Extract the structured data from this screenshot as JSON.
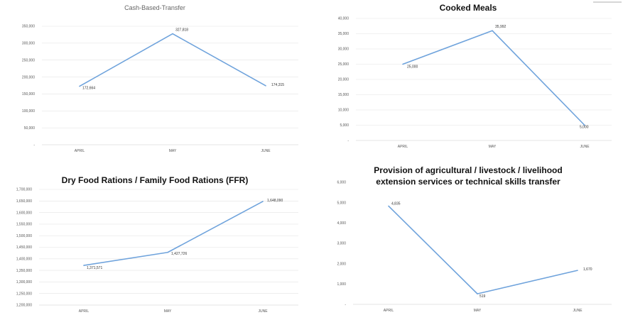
{
  "chart_data": [
    {
      "type": "line",
      "title": "Cash-Based-Transfer",
      "categories": [
        "APRIL",
        "MAY",
        "JUNE"
      ],
      "values": [
        172664,
        327818,
        174315
      ],
      "value_labels": [
        "172,664",
        "327,818",
        "174,315"
      ],
      "ylim": [
        0,
        350000
      ],
      "yticks": [
        "-",
        "50,000",
        "100,000",
        "150,000",
        "200,000",
        "250,000",
        "300,000",
        "350,000"
      ],
      "grid": true,
      "color": "#6fa3dc"
    },
    {
      "type": "line",
      "title": "Cooked Meals",
      "categories": [
        "APRIL",
        "MAY",
        "JUNE"
      ],
      "values": [
        25000,
        35992,
        5000
      ],
      "value_labels": [
        "25,000",
        "35,992",
        "5,000"
      ],
      "ylim": [
        0,
        40000
      ],
      "yticks": [
        "-",
        "5,000",
        "10,000",
        "15,000",
        "20,000",
        "25,000",
        "30,000",
        "35,000",
        "40,000"
      ],
      "grid": true,
      "color": "#6fa3dc"
    },
    {
      "type": "line",
      "title": "Dry Food Rations / Family Food Rations (FFR)",
      "categories": [
        "APRIL",
        "MAY",
        "JUNE"
      ],
      "values": [
        1371571,
        1427726,
        1648090
      ],
      "value_labels": [
        "1,371,571",
        "1,427,726",
        "1,648,090"
      ],
      "ylim": [
        1200000,
        1700000
      ],
      "yticks": [
        "1,200,000",
        "1,250,000",
        "1,300,000",
        "1,350,000",
        "1,400,000",
        "1,450,000",
        "1,500,000",
        "1,550,000",
        "1,600,000",
        "1,650,000",
        "1,700,000"
      ],
      "grid": true,
      "color": "#6fa3dc"
    },
    {
      "type": "line",
      "title": "Provision of agricultural / livestock / livelihood extension services or technical skills transfer",
      "title_lines": [
        "Provision of agricultural / livestock / livelihood",
        "extension services or technical skills transfer"
      ],
      "categories": [
        "APRIL",
        "MAY",
        "JUNE"
      ],
      "values": [
        4835,
        519,
        1670
      ],
      "value_labels": [
        "4,835",
        "519",
        "1,670"
      ],
      "ylim": [
        0,
        6000
      ],
      "yticks": [
        "-",
        "1,000",
        "2,000",
        "3,000",
        "4,000",
        "5,000",
        "6,000"
      ],
      "grid": false,
      "color": "#6fa3dc"
    }
  ]
}
